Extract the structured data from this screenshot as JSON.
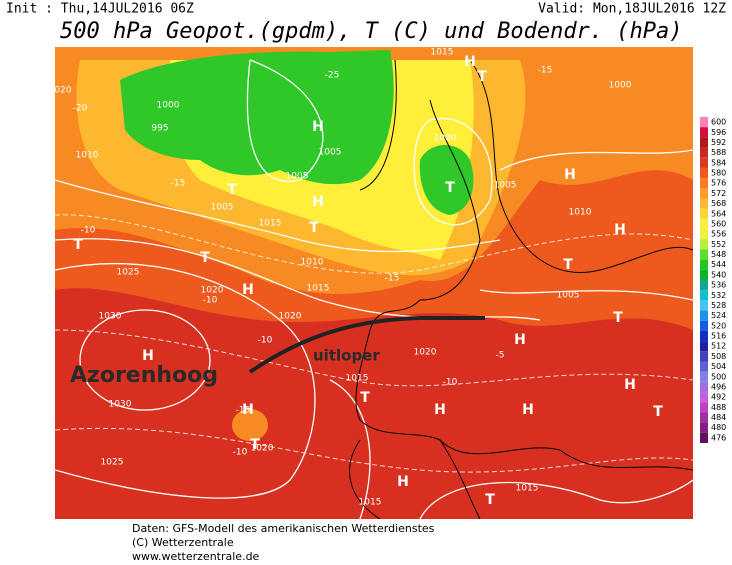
{
  "header": {
    "init": "Init : Thu,14JUL2016 06Z",
    "valid": "Valid: Mon,18JUL2016 12Z",
    "title": "500 hPa Geopot.(gpdm), T (C) und Bodendr. (hPa)"
  },
  "annotations": {
    "high": "Azorenhoog",
    "trough": "uitloper"
  },
  "map": {
    "labels": [
      "1020",
      "1000",
      "995",
      "1010",
      "1005",
      "T",
      "H",
      "T",
      "1015",
      "T",
      "T",
      "1025",
      "1010",
      "H",
      "1020",
      "1015",
      "1020",
      "1030",
      "H",
      "1030",
      "H",
      "1020",
      "1025",
      "T",
      "1015",
      "T",
      "1020",
      "H",
      "H",
      "1015",
      "1015",
      "T",
      "H",
      "1005",
      "1010",
      "1000",
      "T",
      "H",
      "1005",
      "T",
      "T",
      "1000",
      "H",
      "T",
      "1015",
      "H",
      "1005",
      "1005",
      "-15",
      "-10",
      "-10",
      "-15",
      "-10",
      "-5",
      "-15",
      "-20",
      "-25",
      "-15",
      "-10",
      "-10",
      "H",
      "H",
      "H",
      "T"
    ]
  },
  "legend": {
    "levels": [
      600,
      596,
      592,
      588,
      584,
      580,
      576,
      572,
      568,
      564,
      560,
      556,
      552,
      548,
      544,
      540,
      536,
      532,
      528,
      524,
      520,
      516,
      512,
      508,
      504,
      500,
      496,
      492,
      488,
      484,
      480,
      476
    ],
    "colors": [
      "#ff7fbf",
      "#d01040",
      "#b01818",
      "#c82820",
      "#dc3a20",
      "#ee5a1e",
      "#f87a22",
      "#fc9a2a",
      "#fdb830",
      "#fed436",
      "#ffee3a",
      "#f0f040",
      "#b8ee3c",
      "#60dc30",
      "#20c820",
      "#10b030",
      "#10a890",
      "#10c0d0",
      "#40c8f0",
      "#2090f0",
      "#1060e0",
      "#1030c0",
      "#2020a0",
      "#4040c0",
      "#6060d8",
      "#8080e8",
      "#a070e0",
      "#c060e0",
      "#c040c0",
      "#a030a0",
      "#802080",
      "#601060"
    ]
  },
  "footer": {
    "line1": "Daten: GFS-Modell des amerikanischen Wetterdienstes",
    "line2": "(C) Wetterzentrale",
    "line3": "www.wetterzentrale.de"
  }
}
